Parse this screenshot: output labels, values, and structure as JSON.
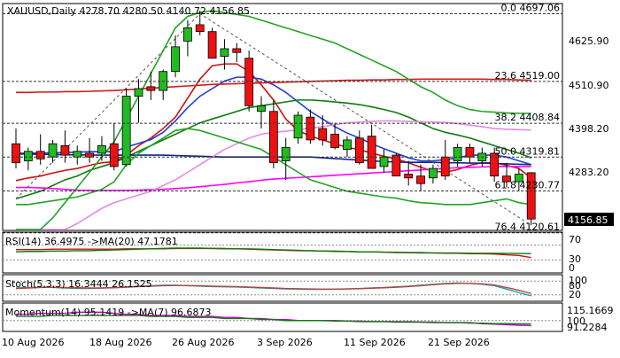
{
  "chart_data": [
    {
      "type": "candlestick",
      "header": {
        "symbol": "XAUUSD,Daily",
        "o": "4278.70",
        "h": "4280.50",
        "l": "4140.72",
        "c": "4156.85"
      },
      "last_price_label": "4156.85",
      "y_ticks": [
        "4625.90",
        "4510.90",
        "4398.20",
        "4283.20"
      ],
      "x_labels": [
        "10 Aug 2026",
        "18 Aug 2026",
        "26 Aug 2026",
        "3 Sep 2026",
        "11 Sep 2026",
        "21 Sep 2026"
      ],
      "fib_levels": [
        {
          "label": "0.0 4697.06",
          "value": 4697.06
        },
        {
          "label": "23.6 4519.00",
          "value": 4519.0
        },
        {
          "label": "38.2 4408.84",
          "value": 4408.84
        },
        {
          "label": "50.0 4319.81",
          "value": 4319.81
        },
        {
          "label": "61.8 4230.77",
          "value": 4230.77
        },
        {
          "label": "76.4 4120.61",
          "value": 4120.61
        }
      ],
      "ohlc": [
        {
          "o": 4355,
          "h": 4395,
          "l": 4290,
          "c": 4305
        },
        {
          "o": 4310,
          "h": 4345,
          "l": 4285,
          "c": 4335
        },
        {
          "o": 4335,
          "h": 4380,
          "l": 4300,
          "c": 4315
        },
        {
          "o": 4320,
          "h": 4365,
          "l": 4305,
          "c": 4355
        },
        {
          "o": 4350,
          "h": 4390,
          "l": 4305,
          "c": 4325
        },
        {
          "o": 4320,
          "h": 4350,
          "l": 4300,
          "c": 4335
        },
        {
          "o": 4330,
          "h": 4370,
          "l": 4305,
          "c": 4320
        },
        {
          "o": 4330,
          "h": 4375,
          "l": 4310,
          "c": 4350
        },
        {
          "o": 4355,
          "h": 4410,
          "l": 4285,
          "c": 4295
        },
        {
          "o": 4300,
          "h": 4500,
          "l": 4295,
          "c": 4480
        },
        {
          "o": 4480,
          "h": 4525,
          "l": 4410,
          "c": 4500
        },
        {
          "o": 4505,
          "h": 4545,
          "l": 4470,
          "c": 4495
        },
        {
          "o": 4495,
          "h": 4550,
          "l": 4470,
          "c": 4545
        },
        {
          "o": 4545,
          "h": 4640,
          "l": 4530,
          "c": 4610
        },
        {
          "o": 4625,
          "h": 4680,
          "l": 4585,
          "c": 4660
        },
        {
          "o": 4668,
          "h": 4705,
          "l": 4640,
          "c": 4650
        },
        {
          "o": 4650,
          "h": 4660,
          "l": 4580,
          "c": 4580
        },
        {
          "o": 4585,
          "h": 4630,
          "l": 4550,
          "c": 4605
        },
        {
          "o": 4605,
          "h": 4620,
          "l": 4570,
          "c": 4595
        },
        {
          "o": 4580,
          "h": 4600,
          "l": 4440,
          "c": 4455
        },
        {
          "o": 4440,
          "h": 4480,
          "l": 4395,
          "c": 4455
        },
        {
          "o": 4440,
          "h": 4470,
          "l": 4290,
          "c": 4305
        },
        {
          "o": 4310,
          "h": 4370,
          "l": 4260,
          "c": 4345
        },
        {
          "o": 4370,
          "h": 4440,
          "l": 4355,
          "c": 4430
        },
        {
          "o": 4425,
          "h": 4445,
          "l": 4355,
          "c": 4365
        },
        {
          "o": 4395,
          "h": 4430,
          "l": 4350,
          "c": 4365
        },
        {
          "o": 4380,
          "h": 4410,
          "l": 4340,
          "c": 4345
        },
        {
          "o": 4340,
          "h": 4375,
          "l": 4320,
          "c": 4365
        },
        {
          "o": 4370,
          "h": 4390,
          "l": 4300,
          "c": 4305
        },
        {
          "o": 4375,
          "h": 4405,
          "l": 4290,
          "c": 4290
        },
        {
          "o": 4295,
          "h": 4340,
          "l": 4280,
          "c": 4320
        },
        {
          "o": 4325,
          "h": 4330,
          "l": 4270,
          "c": 4270
        },
        {
          "o": 4275,
          "h": 4310,
          "l": 4245,
          "c": 4265
        },
        {
          "o": 4270,
          "h": 4300,
          "l": 4230,
          "c": 4250
        },
        {
          "o": 4265,
          "h": 4300,
          "l": 4250,
          "c": 4290
        },
        {
          "o": 4320,
          "h": 4365,
          "l": 4260,
          "c": 4270
        },
        {
          "o": 4310,
          "h": 4355,
          "l": 4295,
          "c": 4345
        },
        {
          "o": 4345,
          "h": 4355,
          "l": 4305,
          "c": 4320
        },
        {
          "o": 4310,
          "h": 4345,
          "l": 4295,
          "c": 4330
        },
        {
          "o": 4330,
          "h": 4345,
          "l": 4255,
          "c": 4270
        },
        {
          "o": 4270,
          "h": 4305,
          "l": 4240,
          "c": 4255
        },
        {
          "o": 4255,
          "h": 4290,
          "l": 4230,
          "c": 4275
        },
        {
          "o": 4278.7,
          "h": 4280.5,
          "l": 4140.72,
          "c": 4156.85
        }
      ],
      "moving_averages": [
        {
          "color": "#cc1111",
          "values": [
            4258,
            4265,
            4270,
            4278,
            4285,
            4290,
            4298,
            4305,
            4308,
            4325,
            4350,
            4370,
            4395,
            4425,
            4475,
            4525,
            4560,
            4565,
            4565,
            4545,
            4510,
            4470,
            4420,
            4390,
            4375,
            4365,
            4355,
            4345,
            4340,
            4330,
            4322,
            4315,
            4305,
            4293,
            4283,
            4280,
            4287,
            4298,
            4305,
            4305,
            4298,
            4290,
            4265
          ]
        },
        {
          "color": "#1c3fd1",
          "values": [
            4330,
            4330,
            4331,
            4331,
            4332,
            4333,
            4334,
            4334,
            4334,
            4346,
            4356,
            4366,
            4385,
            4415,
            4450,
            4480,
            4500,
            4520,
            4530,
            4530,
            4525,
            4510,
            4490,
            4465,
            4440,
            4420,
            4400,
            4383,
            4370,
            4355,
            4342,
            4330,
            4318,
            4310,
            4310,
            4313,
            4318,
            4325,
            4325,
            4325,
            4320,
            4310,
            4300
          ]
        },
        {
          "color": "#0f7a0f",
          "values": [
            4210,
            4220,
            4230,
            4245,
            4260,
            4270,
            4285,
            4295,
            4305,
            4320,
            4335,
            4350,
            4365,
            4380,
            4395,
            4410,
            4420,
            4430,
            4440,
            4450,
            4455,
            4460,
            4465,
            4470,
            4470,
            4468,
            4465,
            4462,
            4458,
            4452,
            4445,
            4437,
            4425,
            4410,
            4395,
            4385,
            4378,
            4370,
            4360,
            4350,
            4340,
            4330,
            4318
          ]
        },
        {
          "color": "#ff00ff",
          "values": [
            4240,
            4240,
            4239,
            4237,
            4235,
            4233,
            4232,
            4232,
            4232,
            4232,
            4233,
            4234,
            4235,
            4237,
            4239,
            4242,
            4245,
            4248,
            4252,
            4255,
            4259,
            4262,
            4264,
            4266,
            4268,
            4270,
            4272,
            4274,
            4276,
            4278,
            4280,
            4282,
            4284,
            4286,
            4288,
            4290,
            4292,
            4293,
            4294,
            4295,
            4295,
            4295,
            4295
          ]
        },
        {
          "color": "#112288",
          "values": [
            4328,
            4328,
            4327,
            4327,
            4326,
            4326,
            4325,
            4325,
            4325,
            4325,
            4325,
            4325,
            4325,
            4324,
            4323,
            4322,
            4321,
            4320,
            4320,
            4320,
            4320,
            4320,
            4320,
            4320,
            4320,
            4318,
            4316,
            4314,
            4312,
            4310,
            4308,
            4307,
            4306,
            4306,
            4306,
            4305,
            4305,
            4304,
            4304,
            4303,
            4302,
            4301,
            4300
          ]
        },
        {
          "color": "#d21a1a",
          "values": [
            4490,
            4490,
            4491,
            4491,
            4492,
            4492,
            4493,
            4494,
            4495,
            4497,
            4499,
            4501,
            4503,
            4505,
            4507,
            4509,
            4511,
            4512,
            4513,
            4514,
            4515,
            4516,
            4517,
            4518,
            4519,
            4520,
            4521,
            4522,
            4522,
            4523,
            4523,
            4524,
            4524,
            4525,
            4525,
            4525,
            4525,
            4525,
            4525,
            4524,
            4524,
            4523,
            4522
          ]
        },
        {
          "color": "#e38ae3",
          "values": [
            4045,
            4065,
            4085,
            4105,
            4125,
            4145,
            4165,
            4185,
            4200,
            4210,
            4220,
            4230,
            4245,
            4260,
            4280,
            4300,
            4320,
            4340,
            4355,
            4370,
            4380,
            4385,
            4388,
            4392,
            4396,
            4400,
            4405,
            4410,
            4412,
            4414,
            4415,
            4415,
            4414,
            4413,
            4412,
            4411,
            4408,
            4404,
            4400,
            4395,
            4393,
            4392,
            4391
          ]
        },
        {
          "color": "#22a322",
          "values": [
            4050,
            4080,
            4120,
            4160,
            4200,
            4240,
            4280,
            4320,
            4360,
            4420,
            4480,
            4540,
            4600,
            4660,
            4690,
            4700,
            4705,
            4700,
            4695,
            4690,
            4680,
            4670,
            4660,
            4650,
            4640,
            4630,
            4620,
            4605,
            4590,
            4575,
            4560,
            4545,
            4525,
            4505,
            4490,
            4470,
            4455,
            4445,
            4440,
            4438,
            4436,
            4435,
            4435
          ]
        },
        {
          "color": "#22a322",
          "values": [
            4195,
            4195,
            4200,
            4205,
            4210,
            4215,
            4225,
            4235,
            4255,
            4300,
            4330,
            4350,
            4370,
            4390,
            4395,
            4390,
            4380,
            4370,
            4360,
            4350,
            4340,
            4320,
            4300,
            4280,
            4260,
            4250,
            4240,
            4230,
            4225,
            4220,
            4215,
            4212,
            4205,
            4200,
            4198,
            4195,
            4195,
            4195,
            4200,
            4205,
            4210,
            4200,
            4195
          ]
        }
      ],
      "zigzag": {
        "color": "#555555",
        "points": [
          [
            0,
            4210
          ],
          [
            15,
            4697.06
          ],
          [
            42,
            4140.72
          ]
        ]
      }
    },
    {
      "type": "line",
      "label": "RSI(14) 36.4975  ->MA(20) 47.1781",
      "y_ticks": [
        "70",
        "30",
        "0"
      ],
      "series": [
        {
          "color": "#cc1111",
          "values": [
            58,
            58,
            58,
            59,
            59,
            59,
            59,
            59,
            59,
            60,
            60,
            60,
            60,
            61,
            61,
            61,
            61,
            60,
            60,
            59,
            58,
            57,
            56,
            55,
            55,
            54,
            54,
            53,
            52,
            52,
            51,
            50,
            50,
            49,
            49,
            48,
            48,
            47,
            47,
            46,
            44,
            42,
            36.5
          ]
        },
        {
          "color": "#0f7a0f",
          "values": [
            52,
            53,
            53,
            54,
            54,
            55,
            55,
            56,
            57,
            58,
            59,
            60,
            61,
            62,
            62,
            62,
            61,
            61,
            60,
            60,
            59,
            58,
            57,
            56,
            55,
            54,
            53,
            53,
            52,
            52,
            51,
            51,
            50,
            50,
            49,
            49,
            49,
            48,
            48,
            48,
            47.8,
            47.5,
            47.2
          ]
        }
      ]
    },
    {
      "type": "line",
      "label": "Stoch(5,3,3) 16.3444 26.1525",
      "y_ticks": [
        "100",
        "80",
        "20"
      ],
      "series": [
        {
          "color": "#1aa3a3",
          "values": [
            50,
            52,
            54,
            52,
            50,
            48,
            48,
            50,
            52,
            55,
            58,
            60,
            62,
            62,
            60,
            58,
            56,
            55,
            54,
            52,
            50,
            48,
            46,
            45,
            44,
            44,
            45,
            46,
            48,
            50,
            52,
            55,
            58,
            62,
            66,
            70,
            72,
            70,
            66,
            60,
            45,
            30,
            16.3
          ]
        },
        {
          "color": "#b44444",
          "values": [
            48,
            50,
            52,
            53,
            52,
            51,
            50,
            50,
            51,
            53,
            56,
            58,
            60,
            61,
            61,
            60,
            58,
            57,
            56,
            54,
            52,
            50,
            48,
            47,
            46,
            45,
            45,
            46,
            47,
            49,
            51,
            53,
            56,
            60,
            64,
            68,
            70,
            70,
            68,
            63,
            52,
            40,
            26.2
          ]
        }
      ]
    },
    {
      "type": "line",
      "label": "Momentum(14) 95.1419  ->MA(7) 96.6873",
      "y_ticks": [
        "115.1669",
        "100",
        "91.2284"
      ],
      "series": [
        {
          "color": "#cc00cc",
          "values": [
            106,
            106,
            107,
            107,
            107,
            108,
            108,
            108,
            107,
            106,
            106,
            105,
            105,
            105,
            104,
            104,
            104,
            103,
            103,
            102,
            102,
            101,
            101,
            100,
            100,
            100,
            100,
            99.5,
            99.5,
            99,
            99,
            99,
            99,
            98.5,
            98.5,
            98,
            98,
            98,
            97,
            96.5,
            96,
            95.5,
            95.1
          ]
        },
        {
          "color": "#0f7a0f",
          "values": [
            104,
            104,
            104,
            105,
            105,
            105,
            105,
            105,
            105,
            105,
            105,
            104,
            104,
            104,
            103,
            103,
            103,
            102,
            102,
            102,
            101,
            101,
            100,
            100,
            100,
            100,
            99.5,
            99.5,
            99,
            99,
            99,
            98.5,
            98.5,
            98.5,
            98,
            98,
            98,
            97.5,
            97.5,
            97,
            97,
            96.8,
            96.7
          ]
        }
      ]
    }
  ]
}
